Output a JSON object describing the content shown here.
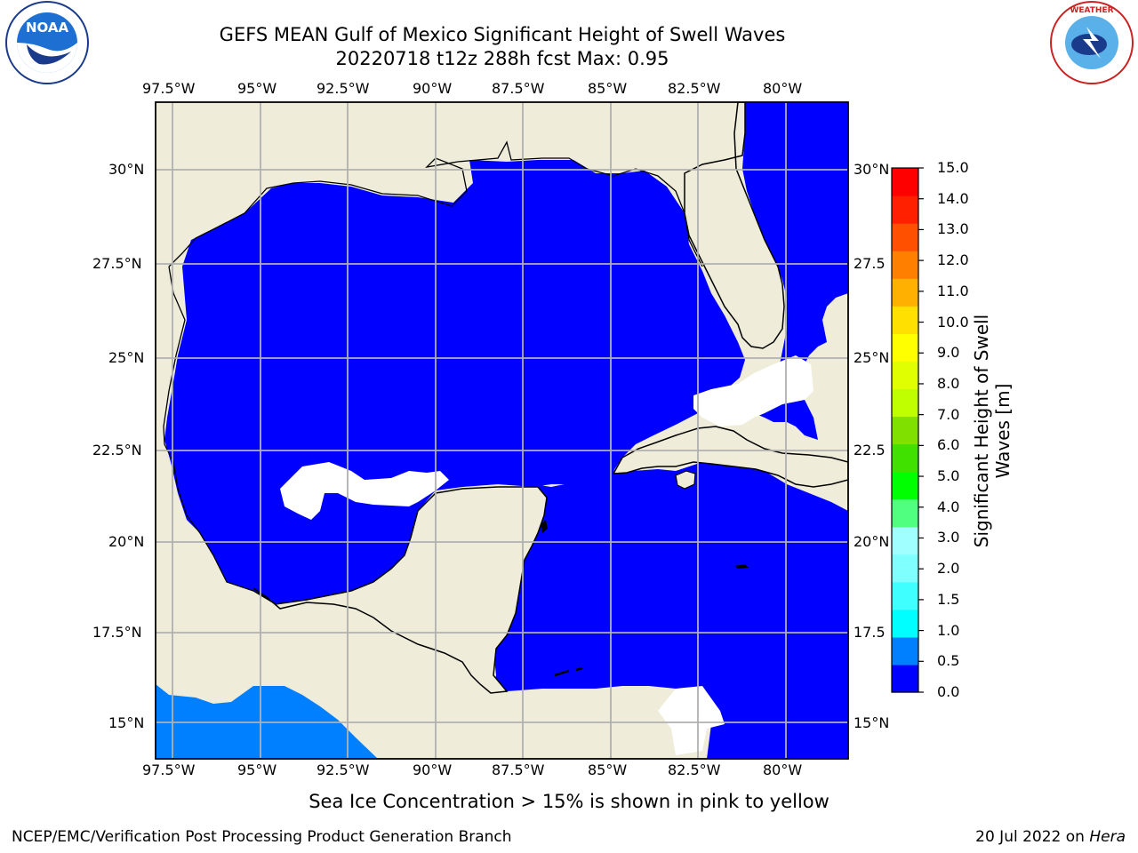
{
  "title_line1": "GEFS MEAN Gulf of Mexico Significant Height of Swell Waves",
  "title_line2": "20220718 t12z 288h fcst   Max: 0.95",
  "subtitle": "Sea Ice Concentration > 15% is shown in pink to yellow",
  "credit": "NCEP/EMC/Verification Post Processing Product Generation Branch",
  "date_text": "20 Jul 2022 on ",
  "machine": "Hera",
  "logos": {
    "left": "noaa-logo",
    "right": "nws-logo"
  },
  "map": {
    "lon_labels": [
      "97.5°W",
      "95°W",
      "92.5°W",
      "90°W",
      "87.5°W",
      "85°W",
      "82.5°W",
      "80°W"
    ],
    "lat_labels": [
      "30°N",
      "27.5°N",
      "25°N",
      "22.5°N",
      "20°N",
      "17.5°N",
      "15°N"
    ],
    "lat_labels_right": [
      "30°N",
      "27.5",
      "25°N",
      "22.5",
      "20°N",
      "17.5",
      "15°N"
    ],
    "colors": {
      "land": "#efedd9",
      "ocean_low": "#0000ff",
      "ocean_mid": "#0080ff",
      "grid": "#b0b0b0"
    }
  },
  "colorbar": {
    "title_line1": "Significant Height of Swell",
    "title_line2": "Waves [m]",
    "ticks": [
      "15.0",
      "14.0",
      "13.0",
      "12.0",
      "11.0",
      "10.0",
      "9.0",
      "8.0",
      "7.0",
      "6.0",
      "5.0",
      "4.0",
      "3.0",
      "2.0",
      "1.5",
      "1.0",
      "0.5",
      "0.0"
    ],
    "colors_bottom_to_top": [
      "#0000ff",
      "#0080ff",
      "#00ffff",
      "#40ffff",
      "#80ffff",
      "#a0ffff",
      "#50ff80",
      "#00ff00",
      "#40e000",
      "#80e000",
      "#c0ff00",
      "#e0ff00",
      "#ffff00",
      "#ffe000",
      "#ffb000",
      "#ff8000",
      "#ff5000",
      "#ff2000",
      "#ff0000"
    ]
  }
}
